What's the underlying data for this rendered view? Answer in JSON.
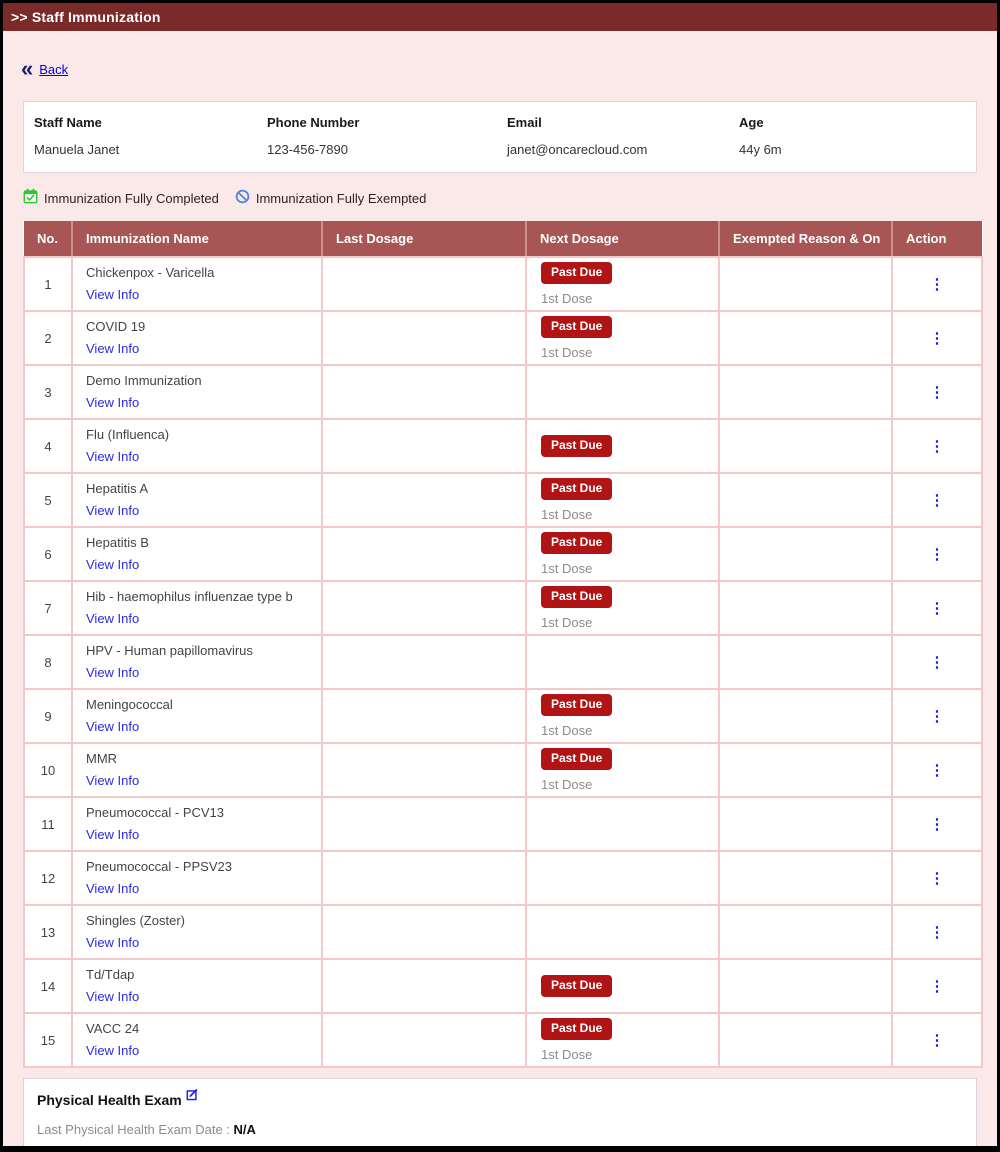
{
  "header": {
    "title": ">> Staff Immunization"
  },
  "back": {
    "icon": "«",
    "label": "Back"
  },
  "staff_info": {
    "fields": [
      {
        "label": "Staff Name",
        "value": "Manuela Janet"
      },
      {
        "label": "Phone Number",
        "value": "123-456-7890"
      },
      {
        "label": "Email",
        "value": "janet@oncarecloud.com"
      },
      {
        "label": "Age",
        "value": "44y 6m"
      }
    ]
  },
  "legend": [
    {
      "icon": "calendar-check-icon",
      "color": "#2EC82E",
      "label": "Immunization Fully Completed"
    },
    {
      "icon": "slash-circle-icon",
      "color": "#4A86E8",
      "label": "Immunization Fully Exempted"
    }
  ],
  "table": {
    "columns": [
      "No.",
      "Immunization Name",
      "Last Dosage",
      "Next Dosage",
      "Exempted Reason & On",
      "Action"
    ],
    "view_info_label": "View Info",
    "past_due_label": "Past Due",
    "action_icon": "vertical-ellipsis",
    "rows": [
      {
        "no": "1",
        "name": "Chickenpox - Varicella",
        "last_dosage": "",
        "past_due": true,
        "dose": "1st Dose",
        "exempted": ""
      },
      {
        "no": "2",
        "name": "COVID 19",
        "last_dosage": "",
        "past_due": true,
        "dose": "1st Dose",
        "exempted": ""
      },
      {
        "no": "3",
        "name": "Demo Immunization",
        "last_dosage": "",
        "past_due": false,
        "dose": "",
        "exempted": ""
      },
      {
        "no": "4",
        "name": "Flu (Influenca)",
        "last_dosage": "",
        "past_due": true,
        "dose": "",
        "exempted": ""
      },
      {
        "no": "5",
        "name": "Hepatitis A",
        "last_dosage": "",
        "past_due": true,
        "dose": "1st Dose",
        "exempted": ""
      },
      {
        "no": "6",
        "name": "Hepatitis B",
        "last_dosage": "",
        "past_due": true,
        "dose": "1st Dose",
        "exempted": ""
      },
      {
        "no": "7",
        "name": "Hib - haemophilus influenzae type b",
        "last_dosage": "",
        "past_due": true,
        "dose": "1st Dose",
        "exempted": ""
      },
      {
        "no": "8",
        "name": "HPV - Human papillomavirus",
        "last_dosage": "",
        "past_due": false,
        "dose": "",
        "exempted": ""
      },
      {
        "no": "9",
        "name": "Meningococcal",
        "last_dosage": "",
        "past_due": true,
        "dose": "1st Dose",
        "exempted": ""
      },
      {
        "no": "10",
        "name": "MMR",
        "last_dosage": "",
        "past_due": true,
        "dose": "1st Dose",
        "exempted": ""
      },
      {
        "no": "11",
        "name": "Pneumococcal - PCV13",
        "last_dosage": "",
        "past_due": false,
        "dose": "",
        "exempted": ""
      },
      {
        "no": "12",
        "name": "Pneumococcal - PPSV23",
        "last_dosage": "",
        "past_due": false,
        "dose": "",
        "exempted": ""
      },
      {
        "no": "13",
        "name": "Shingles (Zoster)",
        "last_dosage": "",
        "past_due": false,
        "dose": "",
        "exempted": ""
      },
      {
        "no": "14",
        "name": "Td/Tdap",
        "last_dosage": "",
        "past_due": true,
        "dose": "",
        "exempted": ""
      },
      {
        "no": "15",
        "name": "VACC 24",
        "last_dosage": "",
        "past_due": true,
        "dose": "1st Dose",
        "exempted": ""
      }
    ]
  },
  "physical_exam": {
    "title": "Physical Health Exam",
    "edit_icon": "edit-icon",
    "last_exam_label": "Last Physical Health Exam Date :",
    "last_exam_value": "N/A"
  },
  "colors": {
    "topbar_bg": "#7B2A2A",
    "page_bg": "#FBE9E9",
    "table_header_bg": "#A75555",
    "table_border": "#F3C8C8",
    "past_due_bg": "#B11414",
    "link_blue": "#2B2BE0",
    "legend_green": "#2EC82E",
    "legend_blue": "#4A86E8"
  }
}
